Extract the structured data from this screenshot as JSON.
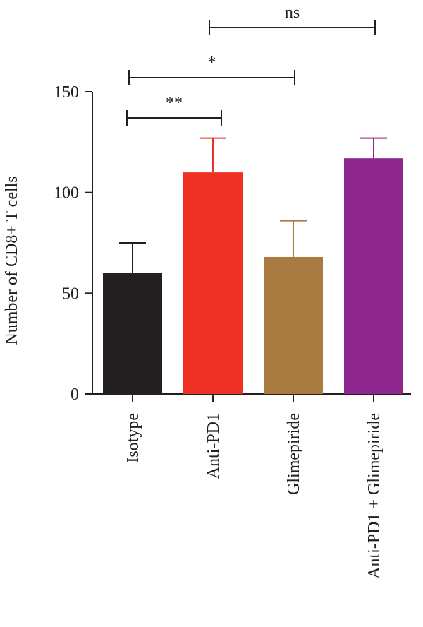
{
  "chart_data": {
    "type": "bar",
    "ylabel": "Number of CD8+ T cells",
    "xlabel": "",
    "ylim": [
      0,
      150
    ],
    "yticks": [
      0,
      50,
      100,
      150
    ],
    "grid": false,
    "categories": [
      "Isotype",
      "Anti-PD1",
      "Glimepiride",
      "Anti-PD1 + Glimepiride"
    ],
    "values": [
      60,
      110,
      68,
      117
    ],
    "errors": [
      15,
      17,
      18,
      10
    ],
    "colors": [
      "#231f20",
      "#ee3124",
      "#a87a40",
      "#8e278e"
    ],
    "significance": [
      {
        "from": 0,
        "to": 1,
        "label": "**"
      },
      {
        "from": 0,
        "to": 2,
        "label": "*"
      },
      {
        "from": 1,
        "to": 3,
        "label": "ns"
      }
    ]
  }
}
